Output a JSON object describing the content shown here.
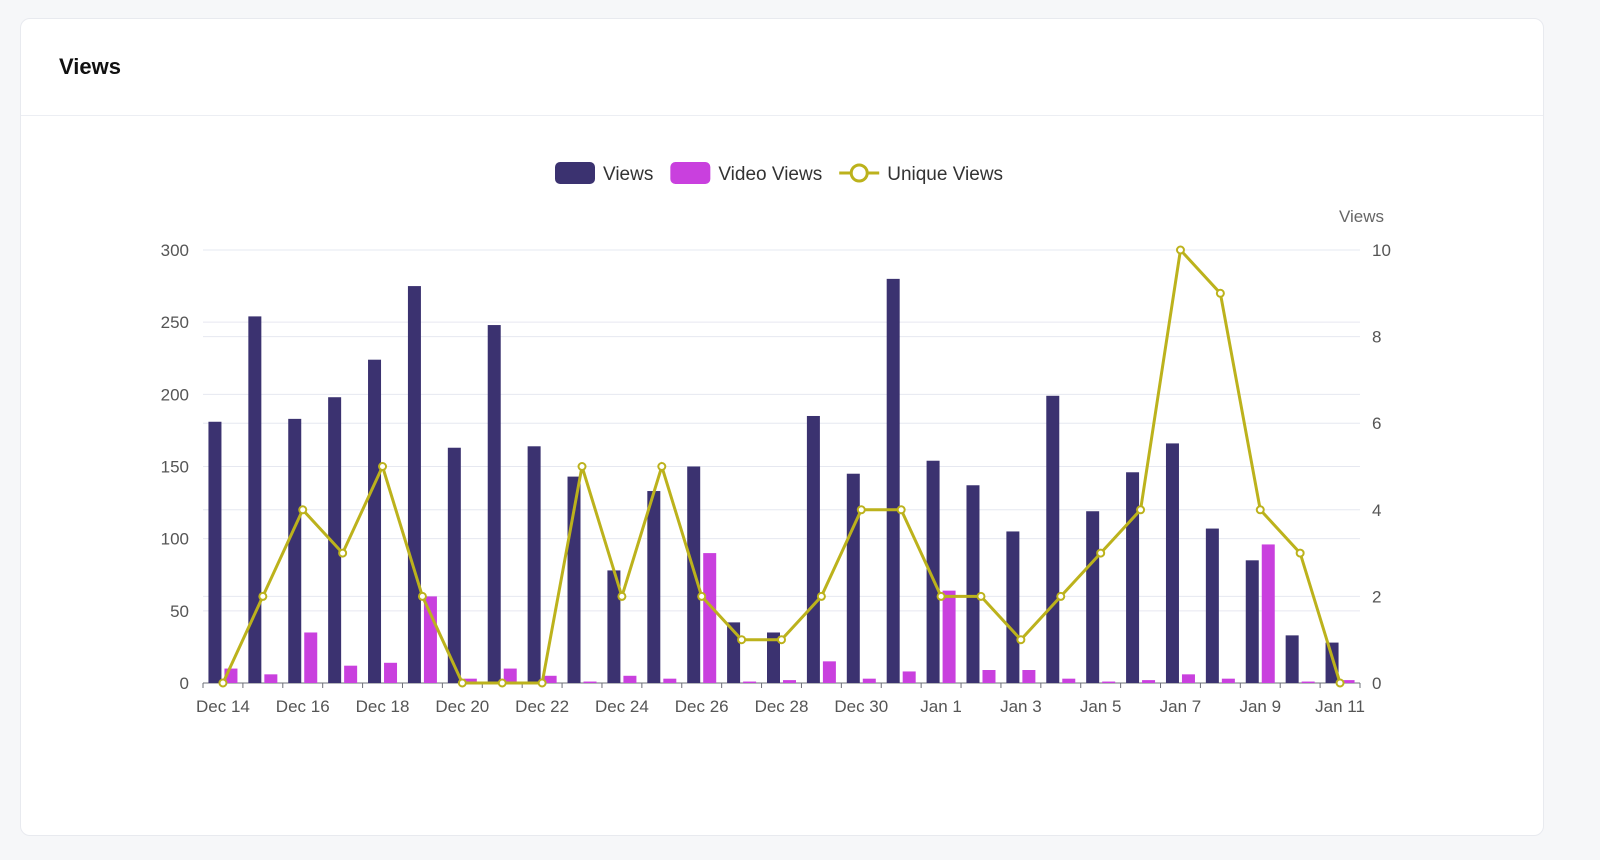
{
  "card": {
    "title": "Views"
  },
  "chart_data": {
    "type": "bar",
    "categories": [
      "Dec 14",
      "Dec 15",
      "Dec 16",
      "Dec 17",
      "Dec 18",
      "Dec 19",
      "Dec 20",
      "Dec 21",
      "Dec 22",
      "Dec 23",
      "Dec 24",
      "Dec 25",
      "Dec 26",
      "Dec 27",
      "Dec 28",
      "Dec 29",
      "Dec 30",
      "Dec 31",
      "Jan 1",
      "Jan 2",
      "Jan 3",
      "Jan 4",
      "Jan 5",
      "Jan 6",
      "Jan 7",
      "Jan 8",
      "Jan 9",
      "Jan 10",
      "Jan 11"
    ],
    "series": [
      {
        "name": "Views",
        "type": "bar",
        "axis": "left",
        "color": "#3b3270",
        "values": [
          181,
          254,
          183,
          198,
          224,
          275,
          163,
          248,
          164,
          143,
          78,
          133,
          150,
          42,
          35,
          185,
          145,
          280,
          154,
          137,
          105,
          199,
          119,
          146,
          166,
          107,
          85,
          33,
          28
        ]
      },
      {
        "name": "Video Views",
        "type": "bar",
        "axis": "left",
        "color": "#c940de",
        "values": [
          10,
          6,
          35,
          12,
          14,
          60,
          3,
          10,
          5,
          1,
          5,
          3,
          90,
          1,
          2,
          15,
          3,
          8,
          64,
          9,
          9,
          3,
          1,
          2,
          6,
          3,
          96,
          1,
          2
        ]
      },
      {
        "name": "Unique Views",
        "type": "line",
        "axis": "right",
        "color": "#bcb21c",
        "values": [
          0,
          2,
          4,
          3,
          5,
          2,
          0,
          0,
          0,
          5,
          2,
          5,
          2,
          1,
          1,
          2,
          4,
          4,
          2,
          2,
          1,
          2,
          3,
          4,
          10,
          9,
          4,
          3,
          0
        ]
      }
    ],
    "left_axis": {
      "range": [
        0,
        300
      ],
      "ticks": [
        0,
        50,
        100,
        150,
        200,
        250,
        300
      ]
    },
    "right_axis": {
      "label": "Views",
      "range": [
        0,
        10
      ],
      "ticks": [
        0,
        2,
        4,
        6,
        8,
        10
      ]
    },
    "legend_position": "top-center",
    "grid": true
  }
}
